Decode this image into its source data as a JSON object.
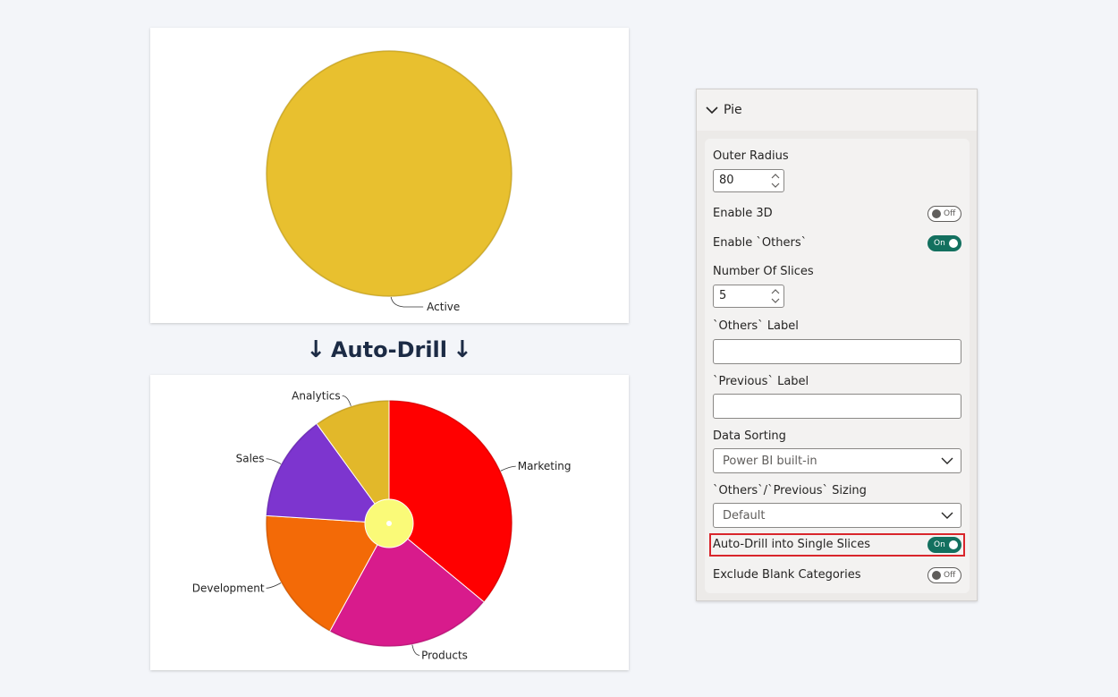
{
  "heading": {
    "text": "Auto-Drill",
    "arrow": "↓"
  },
  "pane": {
    "title": "Pie",
    "outer_radius": {
      "label": "Outer Radius",
      "value": "80"
    },
    "enable_3d": {
      "label": "Enable 3D",
      "state": "Off"
    },
    "enable_others": {
      "label": "Enable `Others`",
      "state": "On"
    },
    "number_of_slices": {
      "label": "Number Of Slices",
      "value": "5"
    },
    "others_label": {
      "label": "`Others` Label",
      "value": ""
    },
    "previous_label": {
      "label": "`Previous` Label",
      "value": ""
    },
    "data_sorting": {
      "label": "Data Sorting",
      "value": "Power BI built-in"
    },
    "sizing": {
      "label": "`Others`/`Previous` Sizing",
      "value": "Default"
    },
    "auto_drill": {
      "label": "Auto-Drill into Single Slices",
      "state": "On"
    },
    "exclude_blank": {
      "label": "Exclude Blank Categories",
      "state": "Off"
    },
    "colors": {
      "toggle_on": "#13705f",
      "highlight": "#d9262c"
    }
  },
  "chart_data": [
    {
      "type": "pie",
      "categories": [
        "Active"
      ],
      "values": [
        100
      ],
      "colors": [
        "#e8c02f"
      ]
    },
    {
      "type": "pie",
      "categories": [
        "Marketing",
        "Products",
        "Development",
        "Sales",
        "Analytics"
      ],
      "values": [
        36,
        22,
        18,
        14,
        10
      ],
      "colors": [
        "#ff0000",
        "#d81b8c",
        "#f36a07",
        "#7d35cf",
        "#e2b82a"
      ],
      "center_color": "#fafa78"
    }
  ]
}
